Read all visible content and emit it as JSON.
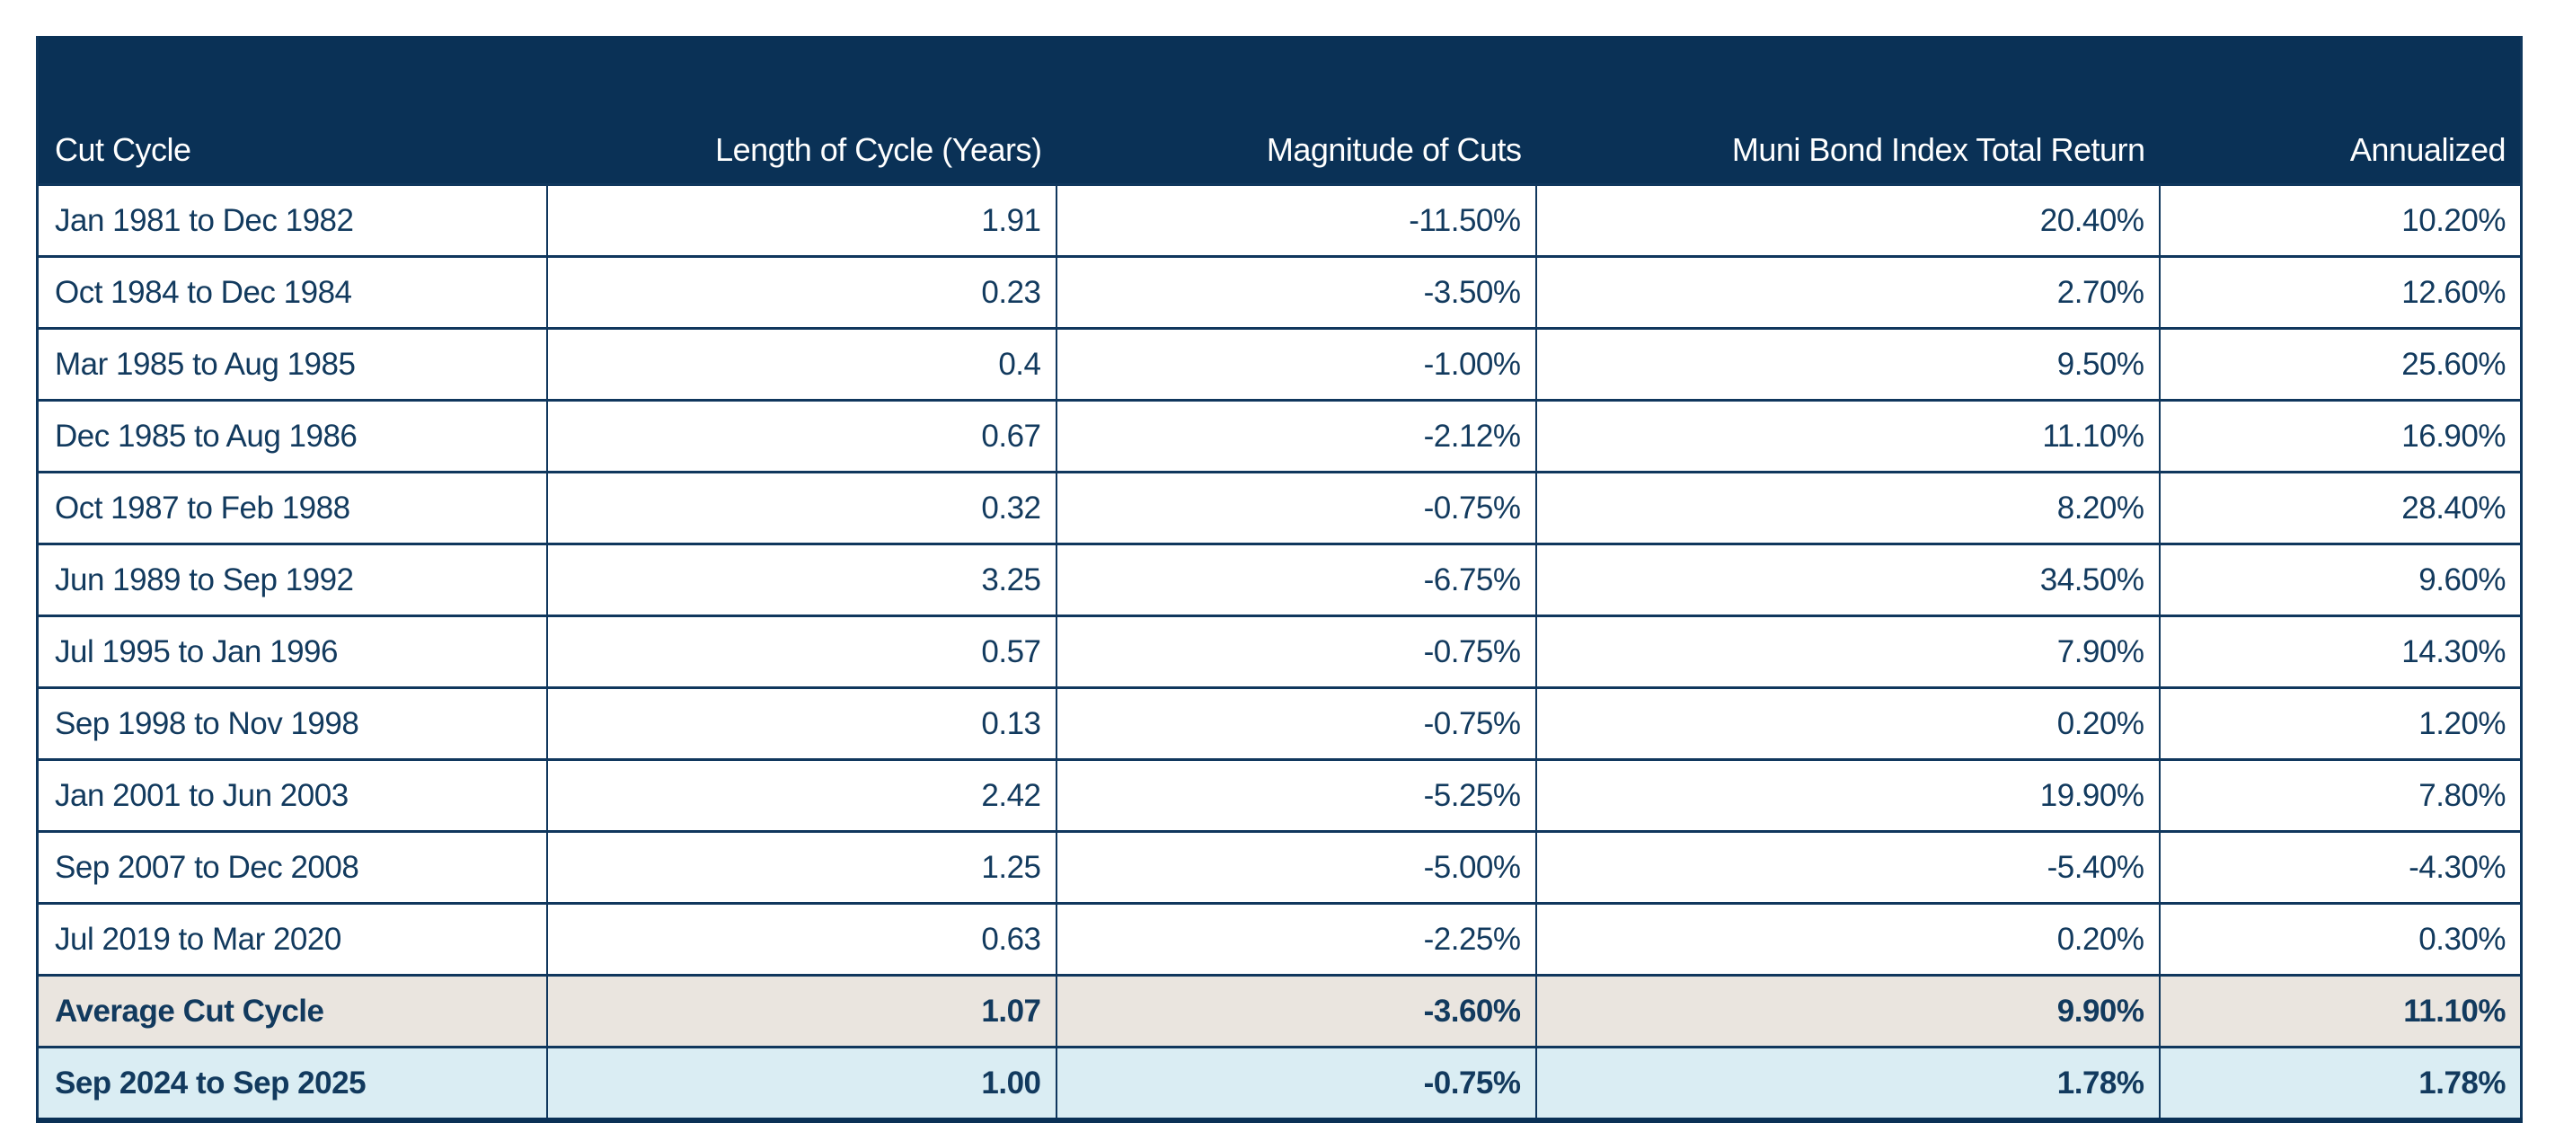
{
  "table": {
    "headers": [
      "Cut Cycle",
      "Length of Cycle (Years)",
      "Magnitude of Cuts",
      "Muni Bond Index Total Return",
      "Annualized"
    ],
    "rows": [
      {
        "style": "default",
        "cells": [
          "Jan 1981 to Dec 1982",
          "1.91",
          "-11.50%",
          "20.40%",
          "10.20%"
        ]
      },
      {
        "style": "default",
        "cells": [
          "Oct 1984 to Dec 1984",
          "0.23",
          "-3.50%",
          "2.70%",
          "12.60%"
        ]
      },
      {
        "style": "default",
        "cells": [
          "Mar 1985 to Aug 1985",
          "0.4",
          "-1.00%",
          "9.50%",
          "25.60%"
        ]
      },
      {
        "style": "default",
        "cells": [
          "Dec 1985 to Aug 1986",
          "0.67",
          "-2.12%",
          "11.10%",
          "16.90%"
        ]
      },
      {
        "style": "default",
        "cells": [
          "Oct 1987 to Feb 1988",
          "0.32",
          "-0.75%",
          "8.20%",
          "28.40%"
        ]
      },
      {
        "style": "default",
        "cells": [
          "Jun 1989 to Sep 1992",
          "3.25",
          "-6.75%",
          "34.50%",
          "9.60%"
        ]
      },
      {
        "style": "default",
        "cells": [
          "Jul 1995 to Jan 1996",
          "0.57",
          "-0.75%",
          "7.90%",
          "14.30%"
        ]
      },
      {
        "style": "default",
        "cells": [
          "Sep 1998 to Nov 1998",
          "0.13",
          "-0.75%",
          "0.20%",
          "1.20%"
        ]
      },
      {
        "style": "default",
        "cells": [
          "Jan 2001 to Jun 2003",
          "2.42",
          "-5.25%",
          "19.90%",
          "7.80%"
        ]
      },
      {
        "style": "default",
        "cells": [
          "Sep 2007 to Dec 2008",
          "1.25",
          "-5.00%",
          "-5.40%",
          "-4.30%"
        ]
      },
      {
        "style": "default",
        "cells": [
          "Jul 2019 to Mar 2020",
          "0.63",
          "-2.25%",
          "0.20%",
          "0.30%"
        ]
      },
      {
        "style": "average",
        "cells": [
          "Average Cut Cycle",
          "1.07",
          "-3.60%",
          "9.90%",
          "11.10%"
        ]
      },
      {
        "style": "current",
        "cells": [
          "Sep 2024 to Sep 2025",
          "1.00",
          "-0.75%",
          "1.78%",
          "1.78%"
        ]
      }
    ]
  },
  "colors": {
    "header_bg": "#0a3156",
    "header_text": "#ffffff",
    "body_text": "#123a5e",
    "border": "#10375d",
    "average_row_bg": "#eae5df",
    "current_row_bg": "#daedf3",
    "page_bg": "#ffffff"
  },
  "chart_data": {
    "type": "table",
    "columns": [
      "Cut Cycle",
      "Length of Cycle (Years)",
      "Magnitude of Cuts",
      "Muni Bond Index Total Return",
      "Annualized"
    ],
    "rows": [
      [
        "Jan 1981 to Dec 1982",
        "1.91",
        "-11.50%",
        "20.40%",
        "10.20%"
      ],
      [
        "Oct 1984 to Dec 1984",
        "0.23",
        "-3.50%",
        "2.70%",
        "12.60%"
      ],
      [
        "Mar 1985 to Aug 1985",
        "0.4",
        "-1.00%",
        "9.50%",
        "25.60%"
      ],
      [
        "Dec 1985 to Aug 1986",
        "0.67",
        "-2.12%",
        "11.10%",
        "16.90%"
      ],
      [
        "Oct 1987 to Feb 1988",
        "0.32",
        "-0.75%",
        "8.20%",
        "28.40%"
      ],
      [
        "Jun 1989 to Sep 1992",
        "3.25",
        "-6.75%",
        "34.50%",
        "9.60%"
      ],
      [
        "Jul 1995 to Jan 1996",
        "0.57",
        "-0.75%",
        "7.90%",
        "14.30%"
      ],
      [
        "Sep 1998 to Nov 1998",
        "0.13",
        "-0.75%",
        "0.20%",
        "1.20%"
      ],
      [
        "Jan 2001 to Jun 2003",
        "2.42",
        "-5.25%",
        "19.90%",
        "7.80%"
      ],
      [
        "Sep 2007 to Dec 2008",
        "1.25",
        "-5.00%",
        "-5.40%",
        "-4.30%"
      ],
      [
        "Jul 2019 to Mar 2020",
        "0.63",
        "-2.25%",
        "0.20%",
        "0.30%"
      ],
      [
        "Average Cut Cycle",
        "1.07",
        "-3.60%",
        "9.90%",
        "11.10%"
      ],
      [
        "Sep 2024 to Sep 2025",
        "1.00",
        "-0.75%",
        "1.78%",
        "1.78%"
      ]
    ]
  }
}
